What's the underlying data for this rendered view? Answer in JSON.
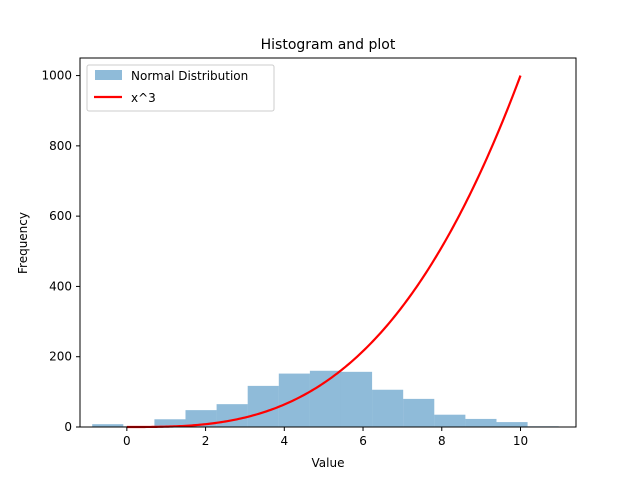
{
  "chart_data": {
    "type": "bar",
    "title": "Histogram and plot",
    "xlabel": "Value",
    "ylabel": "Frequency",
    "xlim": [
      -1.19,
      11.41
    ],
    "ylim": [
      0,
      1050
    ],
    "xticks": [
      0,
      2,
      4,
      6,
      8,
      10
    ],
    "yticks": [
      0,
      200,
      400,
      600,
      800,
      1000
    ],
    "grid": false,
    "legend_position": "top-left",
    "histogram": {
      "name": "Normal Distribution",
      "color": "#1f77b4",
      "opacity": 0.5,
      "bin_edges": [
        -0.88,
        -0.09,
        0.7,
        1.49,
        2.28,
        3.07,
        3.86,
        4.65,
        5.44,
        6.23,
        7.02,
        7.81,
        8.6,
        9.39,
        10.18,
        10.97
      ],
      "counts": [
        8,
        2,
        22,
        48,
        65,
        117,
        152,
        160,
        157,
        106,
        80,
        35,
        23,
        14,
        2
      ]
    },
    "line": {
      "name": "x^3",
      "color": "#ff0000",
      "x_range": [
        0,
        10
      ],
      "points": [
        [
          0,
          0
        ],
        [
          1,
          1
        ],
        [
          2,
          8
        ],
        [
          3,
          27
        ],
        [
          4,
          64
        ],
        [
          5,
          125
        ],
        [
          6,
          216
        ],
        [
          7,
          343
        ],
        [
          8,
          512
        ],
        [
          9,
          729
        ],
        [
          10,
          1000
        ]
      ]
    }
  }
}
